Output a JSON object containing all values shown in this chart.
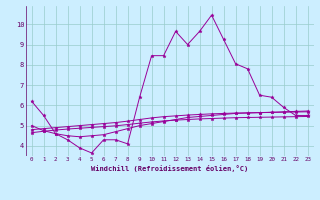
{
  "xlabel": "Windchill (Refroidissement éolien,°C)",
  "background_color": "#cceeff",
  "grid_color": "#99cccc",
  "line_color": "#990099",
  "x_ticks": [
    0,
    1,
    2,
    3,
    4,
    5,
    6,
    7,
    8,
    9,
    10,
    11,
    12,
    13,
    14,
    15,
    16,
    17,
    18,
    19,
    20,
    21,
    22,
    23
  ],
  "y_ticks": [
    4,
    5,
    6,
    7,
    8,
    9,
    10
  ],
  "ylim": [
    3.5,
    10.9
  ],
  "xlim": [
    -0.5,
    23.5
  ],
  "series": [
    [
      6.2,
      5.5,
      4.6,
      4.3,
      3.9,
      3.65,
      4.3,
      4.3,
      4.1,
      6.4,
      8.45,
      8.45,
      9.65,
      9.0,
      9.65,
      10.45,
      9.25,
      8.05,
      7.8,
      6.5,
      6.4,
      5.9,
      5.5,
      5.5
    ],
    [
      5.0,
      4.75,
      4.6,
      4.5,
      4.45,
      4.5,
      4.55,
      4.7,
      4.85,
      5.0,
      5.1,
      5.2,
      5.3,
      5.4,
      5.45,
      5.5,
      5.55,
      5.6,
      5.62,
      5.64,
      5.66,
      5.68,
      5.7,
      5.72
    ],
    [
      4.8,
      4.85,
      4.9,
      4.95,
      5.0,
      5.05,
      5.1,
      5.15,
      5.22,
      5.3,
      5.38,
      5.44,
      5.48,
      5.52,
      5.55,
      5.58,
      5.6,
      5.62,
      5.63,
      5.64,
      5.65,
      5.66,
      5.67,
      5.68
    ],
    [
      4.65,
      4.72,
      4.78,
      4.83,
      4.87,
      4.91,
      4.95,
      4.99,
      5.05,
      5.12,
      5.18,
      5.23,
      5.27,
      5.3,
      5.33,
      5.35,
      5.37,
      5.39,
      5.4,
      5.41,
      5.42,
      5.43,
      5.44,
      5.45
    ]
  ]
}
